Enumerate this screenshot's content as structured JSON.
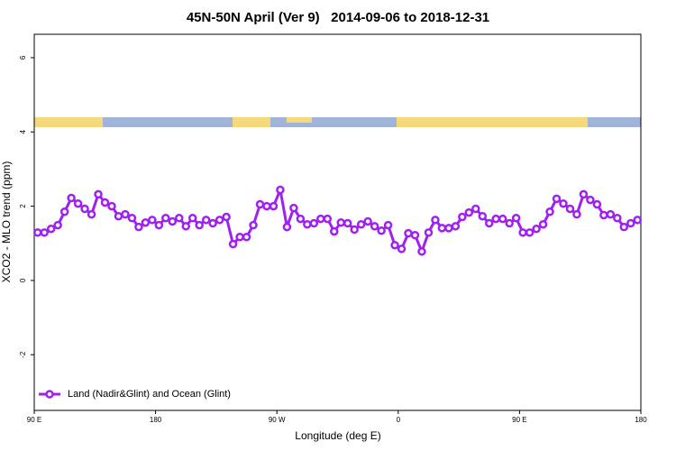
{
  "chart_data": {
    "type": "line",
    "title": "45N-50N April (Ver 9)   2014-09-06 to 2018-12-31",
    "x_label": "Longitude (deg E)",
    "y_label": "XCO2 - MLO trend (ppm)",
    "legend": "bottom-left",
    "xlim": [
      90,
      540
    ],
    "xticks": [
      {
        "value": 90,
        "label": "90 E"
      },
      180,
      {
        "value": 270,
        "label": "90 W"
      },
      {
        "value": 360,
        "label": "0"
      },
      {
        "value": 450,
        "label": "90 E"
      },
      {
        "value": 540,
        "label": "180"
      }
    ],
    "ylim": [
      -3.5,
      6.63
    ],
    "yticks": [
      -2,
      0,
      2,
      4,
      6
    ],
    "x": [
      92.5,
      97.5,
      102.5,
      107.5,
      112.5,
      117.5,
      122.5,
      127.5,
      132.5,
      137.5,
      142.5,
      147.5,
      152.5,
      157.5,
      162.5,
      167.5,
      172.5,
      177.5,
      182.5,
      187.5,
      192.5,
      197.5,
      202.5,
      207.5,
      212.5,
      217.5,
      222.5,
      227.5,
      232.5,
      237.5,
      242.5,
      247.5,
      252.5,
      257.5,
      262.5,
      267.5,
      272.5,
      277.5,
      282.5,
      287.5,
      292.5,
      297.5,
      302.5,
      307.5,
      312.5,
      317.5,
      322.5,
      327.5,
      332.5,
      337.5,
      342.5,
      347.5,
      352.5,
      357.5,
      362.5,
      367.5,
      372.5,
      377.5,
      382.5,
      387.5,
      392.5,
      397.5,
      402.5,
      407.5,
      412.5,
      417.5,
      422.5,
      427.5,
      432.5,
      437.5,
      442.5,
      447.5,
      452.5,
      457.5,
      462.5,
      467.5,
      472.5,
      477.5,
      482.5,
      487.5,
      492.5,
      497.5,
      502.5,
      507.5,
      512.5,
      517.5,
      522.5,
      527.5,
      532.5,
      537.5
    ],
    "series": [
      {
        "name": "Land (Nadir&Glint) and Ocean (Glint)",
        "color": "#a020f0",
        "values": [
          1.29,
          1.29,
          1.39,
          1.49,
          1.85,
          2.22,
          2.07,
          1.93,
          1.78,
          2.32,
          2.1,
          2.0,
          1.73,
          1.78,
          1.68,
          1.44,
          1.56,
          1.63,
          1.49,
          1.68,
          1.59,
          1.68,
          1.46,
          1.68,
          1.49,
          1.63,
          1.54,
          1.63,
          1.71,
          0.98,
          1.17,
          1.17,
          1.49,
          2.05,
          2.0,
          2.0,
          2.44,
          1.44,
          1.95,
          1.66,
          1.51,
          1.54,
          1.66,
          1.66,
          1.32,
          1.56,
          1.54,
          1.37,
          1.51,
          1.59,
          1.46,
          1.34,
          1.49,
          0.95,
          0.85,
          1.27,
          1.22,
          0.78,
          1.29,
          1.63,
          1.41,
          1.41,
          1.46,
          1.71,
          1.83,
          1.93,
          1.73,
          1.54,
          1.66,
          1.66,
          1.54,
          1.68,
          1.29,
          1.29,
          1.39,
          1.51,
          1.85,
          2.2,
          2.07,
          1.93,
          1.78,
          2.32,
          2.17,
          2.05,
          1.76,
          1.78,
          1.68,
          1.44,
          1.54,
          1.63
        ]
      }
    ]
  }
}
